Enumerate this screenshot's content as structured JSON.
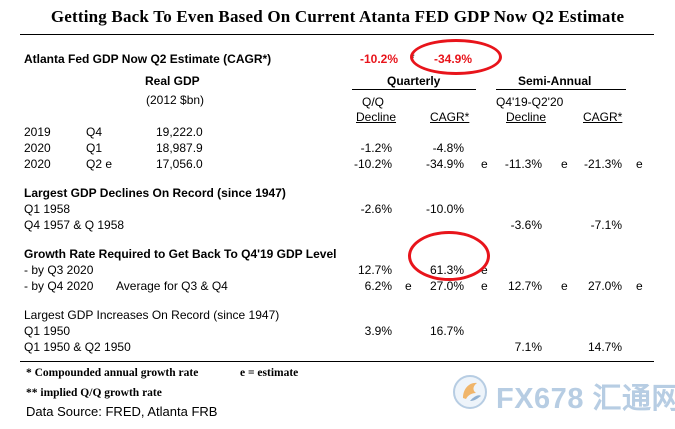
{
  "title": "Getting Back To Even Based On Current Atanta FED GDP Now Q2 Estimate",
  "nowcast": {
    "label": "Atlanta Fed GDP Now Q2 Estimate  (CAGR*)",
    "qoq": "-10.2%",
    "marker": "*",
    "cagr": "-34.9%"
  },
  "headers": {
    "real_gdp": "Real GDP",
    "real_gdp_unit": "(2012 $bn)",
    "quarterly": "Quarterly",
    "semi_annual": "Semi-Annual",
    "qq": "Q/Q",
    "q_decline": "Decline",
    "q_cagr": "CAGR*",
    "semi_period": "Q4'19-Q2'20",
    "s_decline": "Decline",
    "s_cagr": "CAGR*"
  },
  "gdp_rows": [
    {
      "year": "2019",
      "quarter": "Q4",
      "gdp": "19,222.0",
      "decline": "",
      "cagr": "",
      "e1": "",
      "s_decline": "",
      "e2": "",
      "s_cagr": "",
      "e3": ""
    },
    {
      "year": "2020",
      "quarter": "Q1",
      "gdp": "18,987.9",
      "decline": "-1.2%",
      "cagr": "-4.8%",
      "e1": "",
      "s_decline": "",
      "e2": "",
      "s_cagr": "",
      "e3": ""
    },
    {
      "year": "2020",
      "quarter": "Q2 e",
      "gdp": "17,056.0",
      "decline": "-10.2%",
      "cagr": "-34.9%",
      "e1": "e",
      "s_decline": "-11.3%",
      "e2": "e",
      "s_cagr": "-21.3%",
      "e3": "e"
    }
  ],
  "declines": {
    "heading": "Largest GDP Declines On Record (since 1947)",
    "rows": [
      {
        "label": "Q1 1958",
        "qq": "-2.6%",
        "cagr": "-10.0%",
        "s_decline": "",
        "s_cagr": ""
      },
      {
        "label": "Q4 1957 & Q 1958",
        "qq": "",
        "cagr": "",
        "s_decline": "-3.6%",
        "s_cagr": "-7.1%"
      }
    ]
  },
  "growth": {
    "heading": "Growth Rate Required to Get Back To Q4'19 GDP Level",
    "rows": [
      {
        "label": " - by Q3 2020",
        "note": "",
        "qq": "12.7%",
        "e1": "",
        "cagr": "61.3%",
        "e2": "e",
        "s_decline": "",
        "e3": "",
        "s_cagr": "",
        "e4": ""
      },
      {
        "label": " - by Q4 2020",
        "note": "Average for Q3 & Q4",
        "qq": "6.2%",
        "e1": "e",
        "cagr": "27.0%",
        "e2": "e",
        "s_decline": "12.7%",
        "e3": "e",
        "s_cagr": "27.0%",
        "e4": "e"
      }
    ]
  },
  "increases": {
    "heading": "Largest GDP Increases On Record (since 1947)",
    "rows": [
      {
        "label": "Q1 1950",
        "qq": "3.9%",
        "cagr": "16.7%",
        "s_decline": "",
        "s_cagr": ""
      },
      {
        "label": "Q1 1950 & Q2 1950",
        "qq": "",
        "cagr": "",
        "s_decline": "7.1%",
        "s_cagr": "14.7%"
      }
    ]
  },
  "footnotes": {
    "compounded": "* Compounded annual growth rate",
    "estimate": "e = estimate",
    "implied": "** implied Q/Q growth rate",
    "source": "Data Source:  FRED,  Atlanta FRB"
  },
  "watermark": {
    "brand": "FX678",
    "cn": "汇通网"
  },
  "colors": {
    "highlight": "#e8141b",
    "watermark": "#b7cde3"
  }
}
